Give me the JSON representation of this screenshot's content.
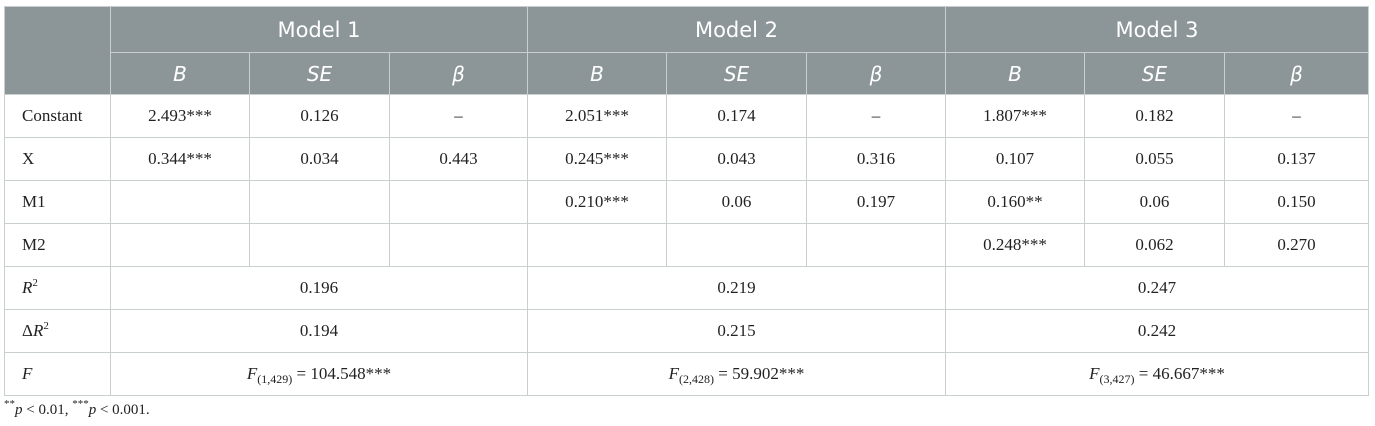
{
  "table": {
    "groups": [
      "Model 1",
      "Model 2",
      "Model 3"
    ],
    "subheaders": [
      "B",
      "SE",
      "β"
    ],
    "rows": [
      {
        "label": "Constant",
        "cells": [
          "2.493***",
          "0.126",
          "–",
          "2.051***",
          "0.174",
          "–",
          "1.807***",
          "0.182",
          "–"
        ]
      },
      {
        "label": "X",
        "cells": [
          "0.344***",
          "0.034",
          "0.443",
          "0.245***",
          "0.043",
          "0.316",
          "0.107",
          "0.055",
          "0.137"
        ]
      },
      {
        "label": "M1",
        "cells": [
          null,
          null,
          null,
          "0.210***",
          "0.06",
          "0.197",
          "0.160**",
          "0.06",
          "0.150"
        ]
      },
      {
        "label": "M2",
        "cells": [
          null,
          null,
          null,
          null,
          null,
          null,
          "0.248***",
          "0.062",
          "0.270"
        ]
      }
    ],
    "summary_rows": [
      {
        "label": {
          "base": "R",
          "sup": "2"
        },
        "cells": [
          "0.196",
          "0.219",
          "0.247"
        ]
      },
      {
        "label": {
          "prefix": "Δ",
          "base": "R",
          "sup": "2"
        },
        "cells": [
          "0.194",
          "0.215",
          "0.242"
        ]
      },
      {
        "label": {
          "base": "F"
        },
        "cells": [
          {
            "base": "F",
            "sub": "(1,429)",
            "rest": " = 104.548***"
          },
          {
            "base": "F",
            "sub": "(2,428)",
            "rest": " = 59.902***"
          },
          {
            "base": "F",
            "sub": "(3,427)",
            "rest": " = 46.667***"
          }
        ]
      }
    ]
  },
  "footnote": [
    {
      "sup": "**",
      "italic": "p",
      "text": " < 0.01, "
    },
    {
      "sup": "***",
      "italic": "p",
      "text": " < 0.001."
    }
  ]
}
